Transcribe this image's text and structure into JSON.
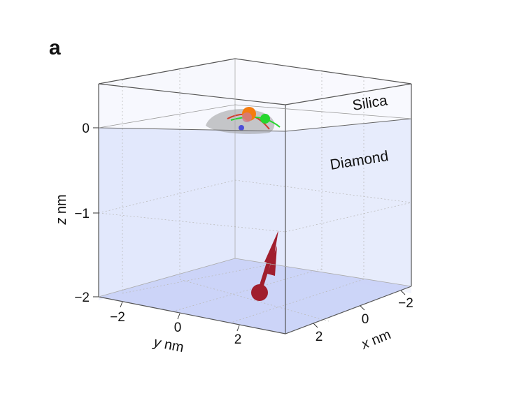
{
  "figure": {
    "panel_label": "a",
    "layers": {
      "top": "Silica",
      "bottom": "Diamond"
    },
    "z_axis": {
      "label_var": "z",
      "label_unit": " nm",
      "ticks": [
        "0",
        "−1",
        "−2"
      ]
    },
    "y_axis": {
      "label_var": "y",
      "label_unit": " nm",
      "ticks": [
        "−2",
        "0",
        "2"
      ]
    },
    "x_axis": {
      "label_var": "x",
      "label_unit": " nm",
      "ticks": [
        "2",
        "0",
        "−2"
      ]
    },
    "colors": {
      "diamond_fill": "#dfe6fb",
      "floor_fill": "#c9d2f7",
      "silica_fill": "#f7f8fe",
      "frame": "#555555",
      "grid": "#bbbbbb",
      "arrow": "#a01e2e",
      "molecule_gray": "#9a9a9a",
      "atom_orange": "#f47c0f",
      "atom_green": "#25d62e",
      "atom_blue": "#4d4dd8",
      "atom_pink": "#d07a8a",
      "trace_red": "#d33a2a"
    }
  }
}
